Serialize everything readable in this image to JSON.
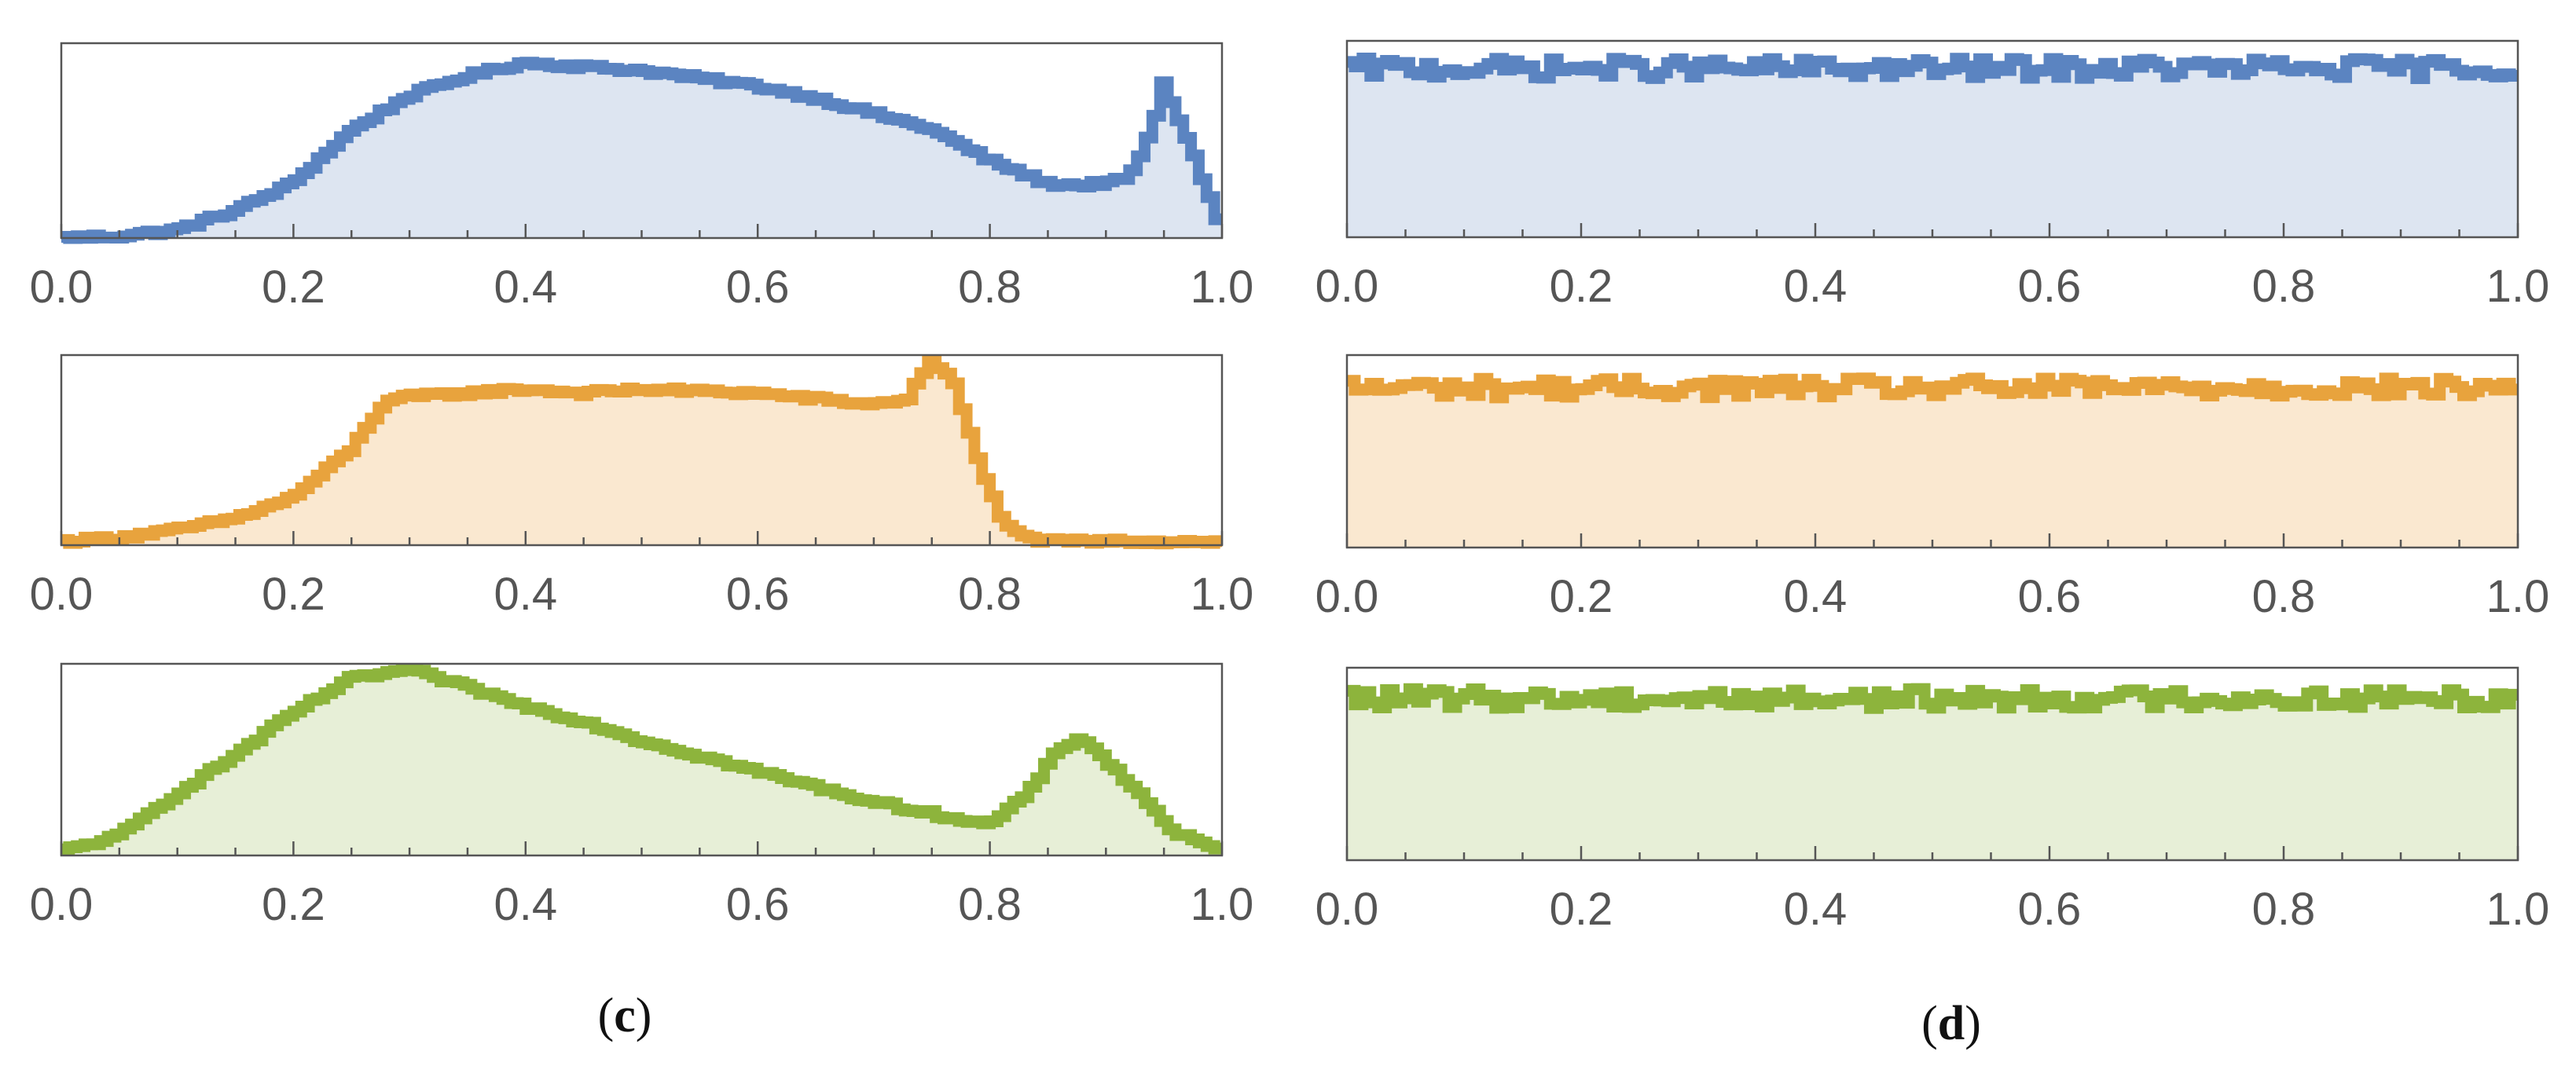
{
  "figure": {
    "captions": [
      {
        "open": "(",
        "letter": "c",
        "close": ")"
      },
      {
        "open": "(",
        "letter": "d",
        "close": ")"
      }
    ]
  },
  "chart_data": [
    {
      "type": "area",
      "panel": "c",
      "row": 1,
      "color": "#5b84c1",
      "fill": "#dde5f1",
      "xlim": [
        0,
        1
      ],
      "x_ticks": [
        "0.0",
        "0.2",
        "0.4",
        "0.6",
        "0.8",
        "1.0"
      ],
      "y_ticks": [],
      "x": [
        0.0,
        0.05,
        0.1,
        0.15,
        0.2,
        0.25,
        0.3,
        0.35,
        0.4,
        0.45,
        0.5,
        0.55,
        0.6,
        0.65,
        0.7,
        0.75,
        0.8,
        0.85,
        0.88,
        0.92,
        0.94,
        0.95,
        0.97,
        1.0
      ],
      "values": [
        0.0,
        0.01,
        0.04,
        0.14,
        0.28,
        0.55,
        0.73,
        0.83,
        0.9,
        0.88,
        0.86,
        0.82,
        0.78,
        0.72,
        0.64,
        0.56,
        0.4,
        0.28,
        0.27,
        0.3,
        0.55,
        0.79,
        0.52,
        0.05
      ]
    },
    {
      "type": "area",
      "panel": "c",
      "row": 2,
      "color": "#e8a33d",
      "fill": "#fae8d0",
      "xlim": [
        0,
        1
      ],
      "x_ticks": [
        "0.0",
        "0.2",
        "0.4",
        "0.6",
        "0.8",
        "1.0"
      ],
      "y_ticks": [],
      "x": [
        0.0,
        0.05,
        0.1,
        0.15,
        0.2,
        0.25,
        0.28,
        0.3,
        0.35,
        0.4,
        0.45,
        0.5,
        0.55,
        0.6,
        0.65,
        0.7,
        0.73,
        0.75,
        0.77,
        0.79,
        0.81,
        0.83,
        0.85,
        0.9,
        1.0
      ],
      "values": [
        0.02,
        0.04,
        0.08,
        0.14,
        0.25,
        0.5,
        0.76,
        0.78,
        0.8,
        0.82,
        0.8,
        0.82,
        0.81,
        0.8,
        0.77,
        0.74,
        0.77,
        0.98,
        0.85,
        0.45,
        0.15,
        0.04,
        0.02,
        0.02,
        0.02
      ]
    },
    {
      "type": "area",
      "panel": "c",
      "row": 3,
      "color": "#8db43c",
      "fill": "#e7efd7",
      "xlim": [
        0,
        1
      ],
      "x_ticks": [
        "0.0",
        "0.2",
        "0.4",
        "0.6",
        "0.8",
        "1.0"
      ],
      "y_ticks": [],
      "x": [
        0.0,
        0.05,
        0.1,
        0.15,
        0.2,
        0.25,
        0.3,
        0.35,
        0.4,
        0.45,
        0.5,
        0.55,
        0.6,
        0.65,
        0.7,
        0.75,
        0.8,
        0.83,
        0.86,
        0.88,
        0.9,
        0.93,
        0.96,
        1.0
      ],
      "values": [
        0.02,
        0.1,
        0.32,
        0.52,
        0.74,
        0.92,
        0.97,
        0.88,
        0.78,
        0.7,
        0.6,
        0.52,
        0.44,
        0.36,
        0.28,
        0.22,
        0.16,
        0.3,
        0.55,
        0.62,
        0.5,
        0.32,
        0.12,
        0.02
      ]
    },
    {
      "type": "area",
      "panel": "d",
      "row": 1,
      "color": "#5b84c1",
      "fill": "#dde5f1",
      "xlim": [
        0,
        1
      ],
      "x_ticks": [
        "0.0",
        "0.2",
        "0.4",
        "0.6",
        "0.8",
        "1.0"
      ],
      "y_ticks": [],
      "x": [
        0.0,
        0.1,
        0.2,
        0.3,
        0.4,
        0.5,
        0.6,
        0.7,
        0.8,
        0.9,
        1.0
      ],
      "values": [
        0.86,
        0.86,
        0.86,
        0.86,
        0.86,
        0.86,
        0.86,
        0.86,
        0.86,
        0.86,
        0.86
      ],
      "noise": 0.05
    },
    {
      "type": "area",
      "panel": "d",
      "row": 2,
      "color": "#e8a33d",
      "fill": "#fae8d0",
      "xlim": [
        0,
        1
      ],
      "x_ticks": [
        "0.0",
        "0.2",
        "0.4",
        "0.6",
        "0.8",
        "1.0"
      ],
      "y_ticks": [],
      "x": [
        0.0,
        0.1,
        0.2,
        0.3,
        0.4,
        0.5,
        0.6,
        0.7,
        0.8,
        0.9,
        1.0
      ],
      "values": [
        0.83,
        0.83,
        0.83,
        0.83,
        0.83,
        0.83,
        0.83,
        0.83,
        0.83,
        0.83,
        0.83
      ],
      "noise": 0.05
    },
    {
      "type": "area",
      "panel": "d",
      "row": 3,
      "color": "#8db43c",
      "fill": "#e7efd7",
      "xlim": [
        0,
        1
      ],
      "x_ticks": [
        "0.0",
        "0.2",
        "0.4",
        "0.6",
        "0.8",
        "1.0"
      ],
      "y_ticks": [],
      "x": [
        0.0,
        0.1,
        0.2,
        0.3,
        0.4,
        0.5,
        0.6,
        0.7,
        0.8,
        0.9,
        1.0
      ],
      "values": [
        0.84,
        0.84,
        0.84,
        0.84,
        0.84,
        0.84,
        0.84,
        0.84,
        0.84,
        0.84,
        0.84
      ],
      "noise": 0.05
    }
  ]
}
